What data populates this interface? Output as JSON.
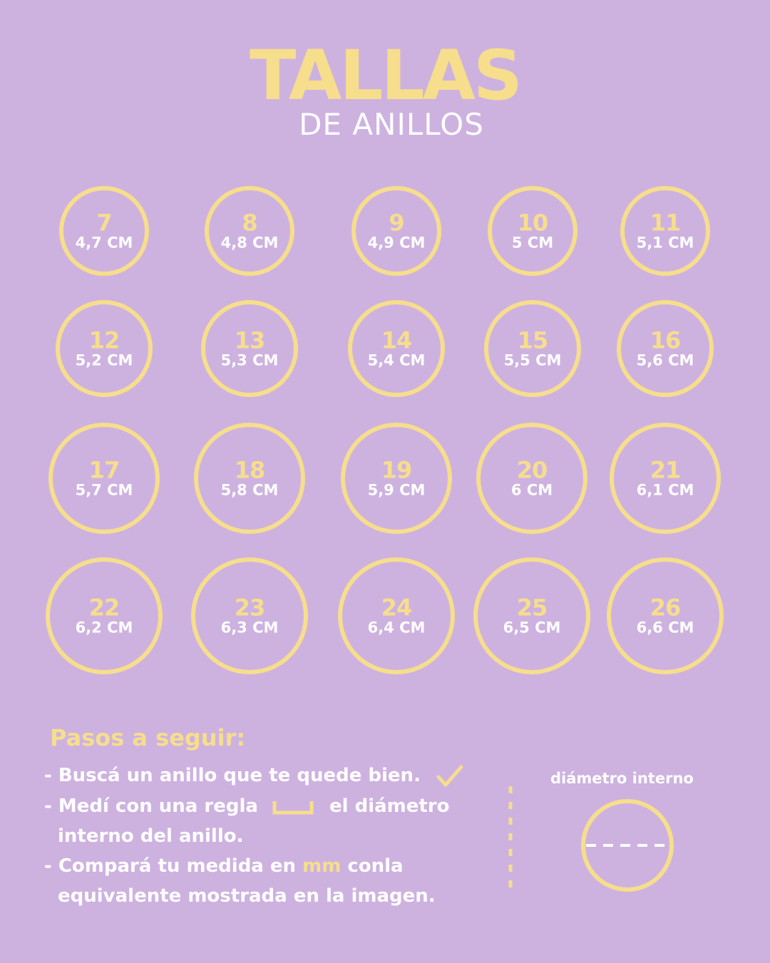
{
  "title": "TALLAS",
  "subtitle": "DE ANILLOS",
  "colors": {
    "background": "#cdb2e0",
    "accent": "#f6de8c",
    "text": "#ffffff"
  },
  "rings": [
    {
      "size": "7",
      "cm": "4,7 CM"
    },
    {
      "size": "8",
      "cm": "4,8 CM"
    },
    {
      "size": "9",
      "cm": "4,9 CM"
    },
    {
      "size": "10",
      "cm": "5 CM"
    },
    {
      "size": "11",
      "cm": "5,1 CM"
    },
    {
      "size": "12",
      "cm": "5,2 CM"
    },
    {
      "size": "13",
      "cm": "5,3 CM"
    },
    {
      "size": "14",
      "cm": "5,4 CM"
    },
    {
      "size": "15",
      "cm": "5,5 CM"
    },
    {
      "size": "16",
      "cm": "5,6 CM"
    },
    {
      "size": "17",
      "cm": "5,7 CM"
    },
    {
      "size": "18",
      "cm": "5,8 CM"
    },
    {
      "size": "19",
      "cm": "5,9 CM"
    },
    {
      "size": "20",
      "cm": "6 CM"
    },
    {
      "size": "21",
      "cm": "6,1 CM"
    },
    {
      "size": "22",
      "cm": "6,2 CM"
    },
    {
      "size": "23",
      "cm": "6,3 CM"
    },
    {
      "size": "24",
      "cm": "6,4 CM"
    },
    {
      "size": "25",
      "cm": "6,5 CM"
    },
    {
      "size": "26",
      "cm": "6,6 CM"
    }
  ],
  "steps": {
    "title": "Pasos a seguir:",
    "step1": "- Buscá un anillo que te quede bien.",
    "step2a": "- Medí con una regla",
    "step2b": "el diámetro",
    "step2c": "interno del anillo.",
    "step3a": "- Compará tu medida en",
    "step3_unit": "mm",
    "step3b": "conla",
    "step3c": "equivalente mostrada en la imagen.",
    "icons": [
      "check-icon",
      "ruler-icon"
    ]
  },
  "diagram": {
    "label": "diámetro interno"
  }
}
